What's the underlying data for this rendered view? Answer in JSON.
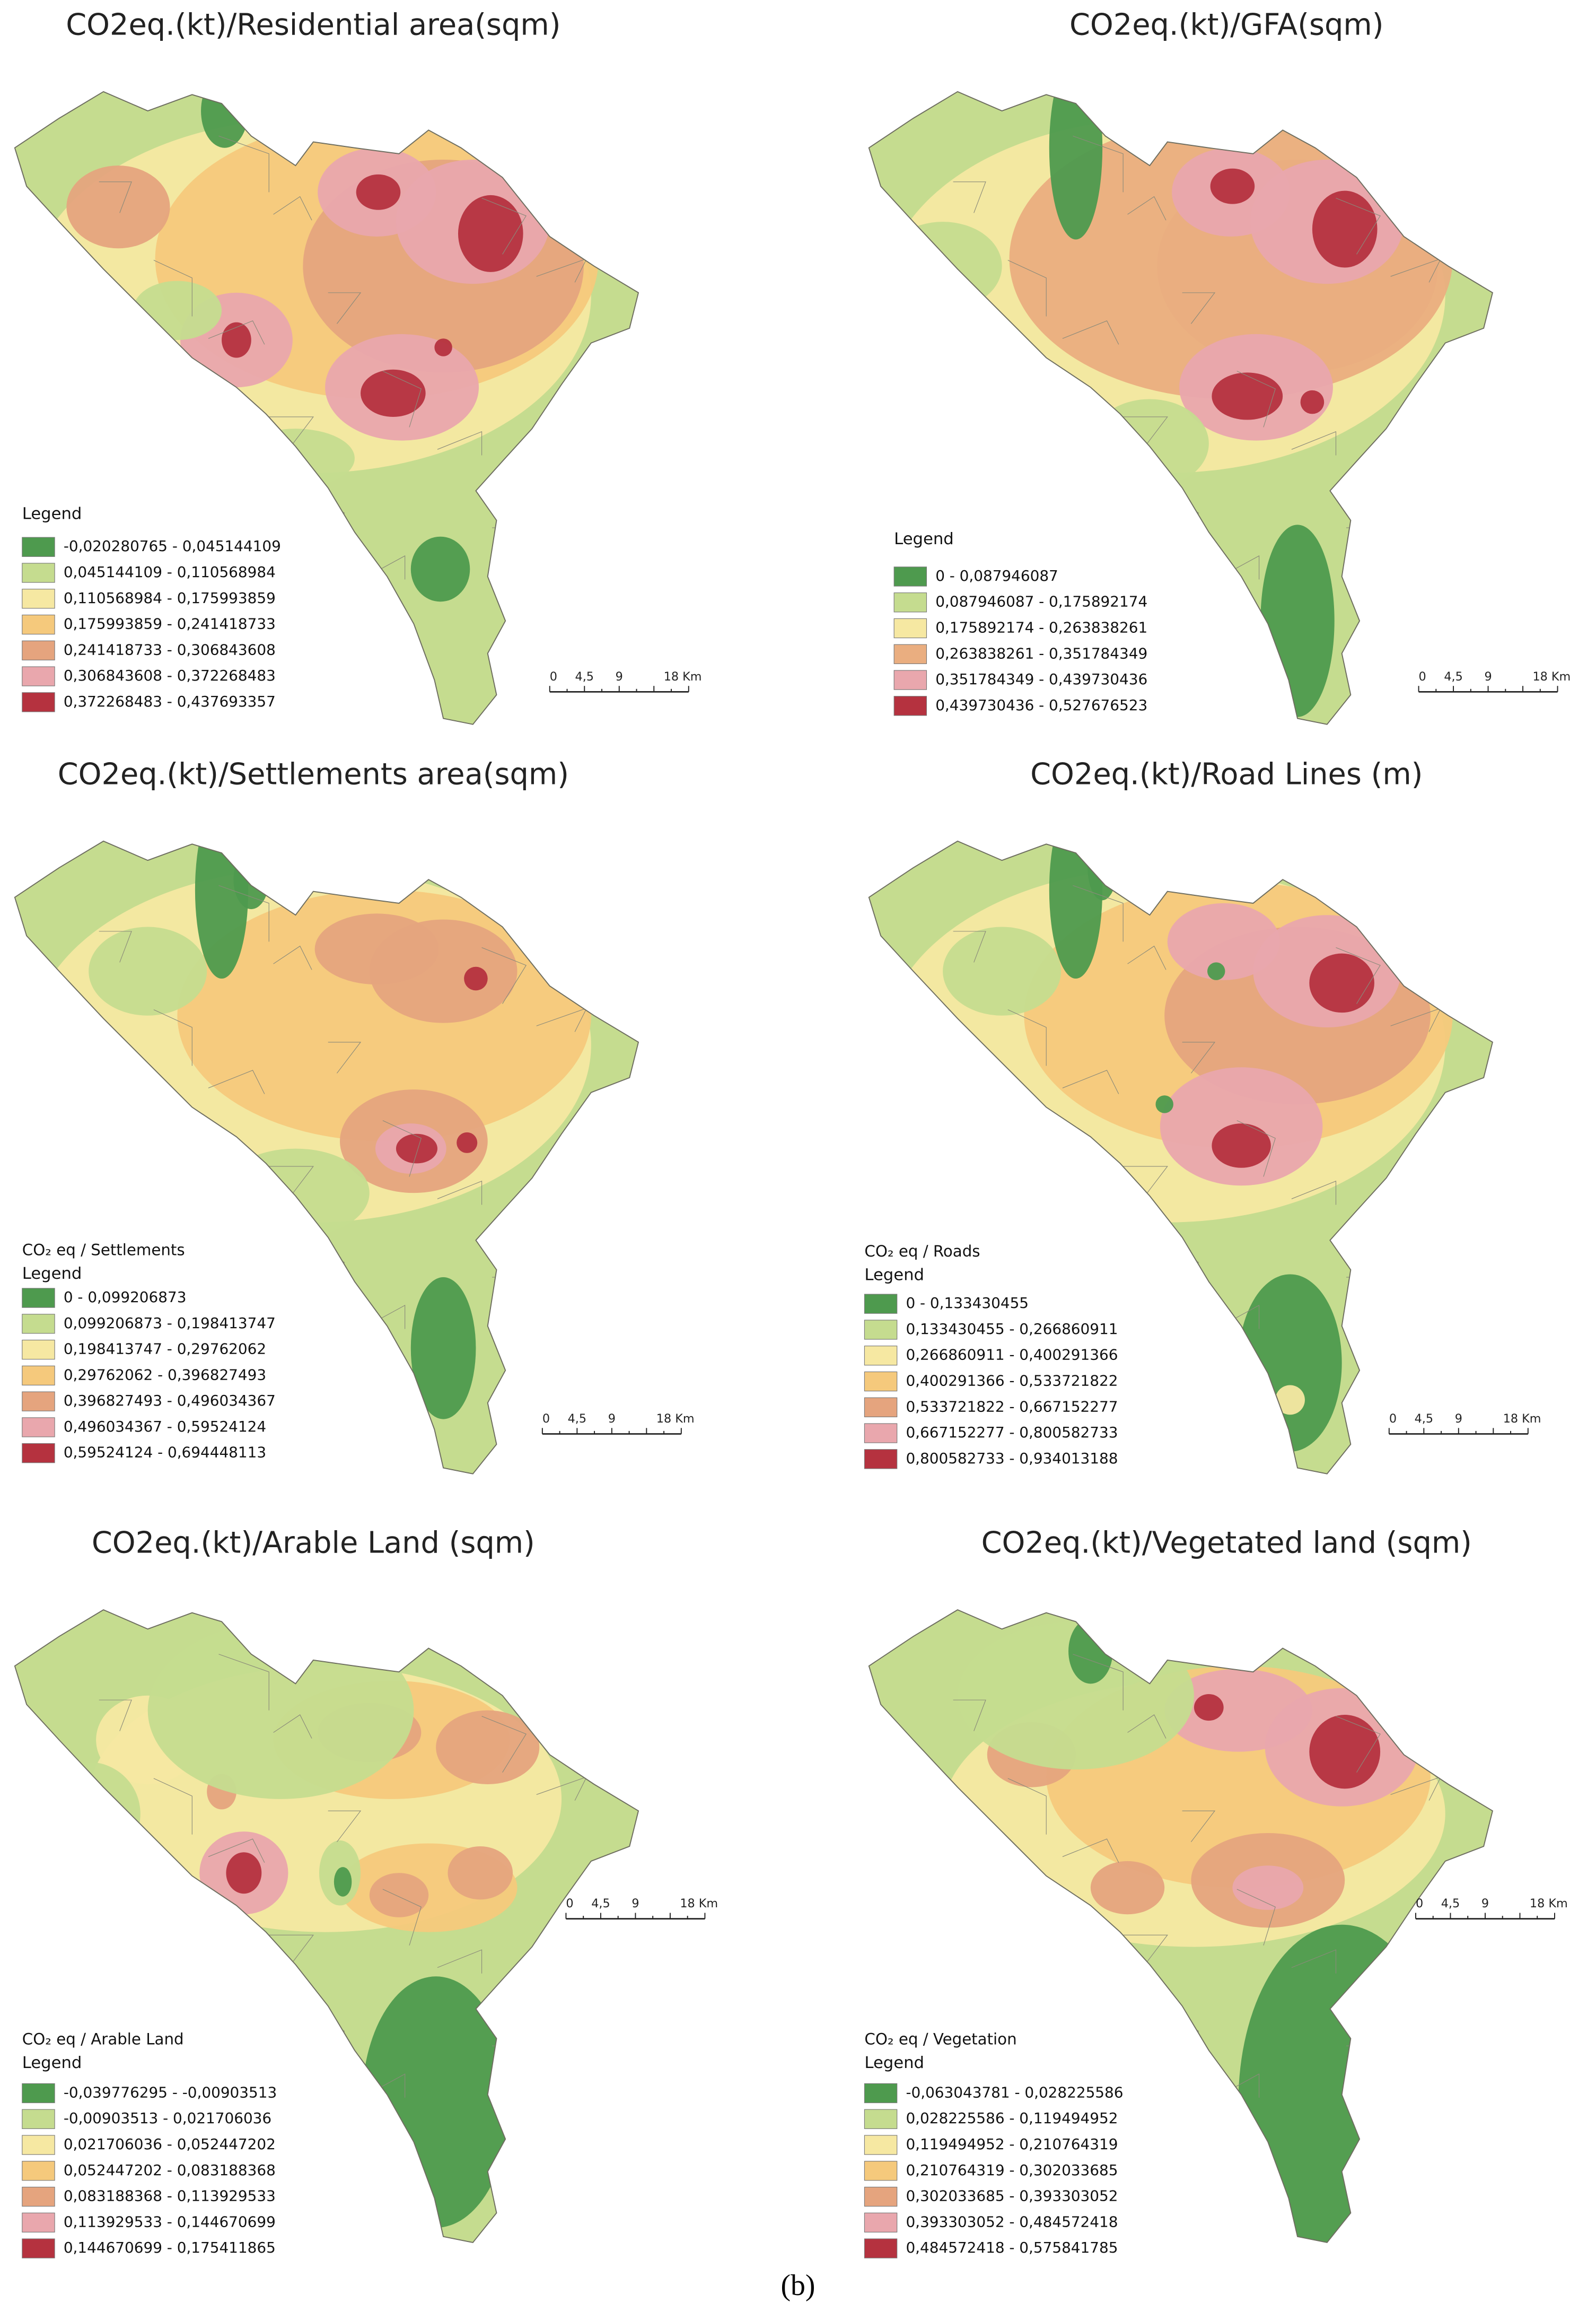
{
  "panels": [
    {
      "title": "CO2eq.(kt)/Residential area(sqm)",
      "legend_title": "Legend",
      "classes": [
        "-0,020280765 - 0,045144109",
        "0,045144109 - 0,110568984",
        "0,110568984 - 0,175993859",
        "0,175993859 - 0,241418733",
        "0,241418733 - 0,306843608",
        "0,306843608 - 0,372268483",
        "0,372268483 - 0,437693357"
      ],
      "colors": [
        "#4e9a4e",
        "#c5dc8f",
        "#f6e8a2",
        "#f5c97c",
        "#e5a47e",
        "#e9a7ad",
        "#b5323f"
      ],
      "scale_labels": [
        "0",
        "4,5",
        "9",
        "18 Km"
      ]
    },
    {
      "title": "CO2eq.(kt)/GFA(sqm)",
      "legend_title": "Legend",
      "classes": [
        "0 - 0,087946087",
        "0,087946087 - 0,175892174",
        "0,175892174 - 0,263838261",
        "0,263838261 - 0,351784349",
        "0,351784349 - 0,439730436",
        "0,439730436 - 0,527676523"
      ],
      "colors": [
        "#4e9a4e",
        "#c5dc8f",
        "#f6e8a2",
        "#eaae80",
        "#e9a7ad",
        "#b5323f"
      ],
      "scale_labels": [
        "0",
        "4,5",
        "9",
        "18 Km"
      ]
    },
    {
      "title": "CO2eq.(kt)/Settlements area(sqm)",
      "subtitle": "CO₂ eq / Settlements",
      "legend_title": "Legend",
      "classes": [
        "0 - 0,099206873",
        "0,099206873 - 0,198413747",
        "0,198413747 - 0,29762062",
        "0,29762062 - 0,396827493",
        "0,396827493 - 0,496034367",
        "0,496034367 - 0,59524124",
        "0,59524124 - 0,694448113"
      ],
      "colors": [
        "#4e9a4e",
        "#c5dc8f",
        "#f6e8a2",
        "#f5c97c",
        "#e5a47e",
        "#e9a7ad",
        "#b5323f"
      ],
      "scale_labels": [
        "0",
        "4,5",
        "9",
        "18 Km"
      ]
    },
    {
      "title": "CO2eq.(kt)/Road Lines (m)",
      "subtitle": "CO₂ eq / Roads",
      "legend_title": "Legend",
      "classes": [
        "0 - 0,133430455",
        "0,133430455 - 0,266860911",
        "0,266860911 - 0,400291366",
        "0,400291366 - 0,533721822",
        "0,533721822 - 0,667152277",
        "0,667152277 - 0,800582733",
        "0,800582733 - 0,934013188"
      ],
      "colors": [
        "#4e9a4e",
        "#c5dc8f",
        "#f6e8a2",
        "#f5c97c",
        "#e5a47e",
        "#e9a7ad",
        "#b5323f"
      ],
      "scale_labels": [
        "0",
        "4,5",
        "9",
        "18 Km"
      ]
    },
    {
      "title": "CO2eq.(kt)/Arable Land (sqm)",
      "subtitle": "CO₂ eq / Arable Land",
      "legend_title": "Legend",
      "classes": [
        "-0,039776295 - -0,00903513",
        "-0,00903513 - 0,021706036",
        "0,021706036 - 0,052447202",
        "0,052447202 - 0,083188368",
        "0,083188368 - 0,113929533",
        "0,113929533 - 0,144670699",
        "0,144670699 - 0,175411865"
      ],
      "colors": [
        "#4e9a4e",
        "#c5dc8f",
        "#f6e8a2",
        "#f5c97c",
        "#e5a47e",
        "#e9a7ad",
        "#b5323f"
      ],
      "scale_labels": [
        "0",
        "4,5",
        "9",
        "18 Km"
      ]
    },
    {
      "title": "CO2eq.(kt)/Vegetated land (sqm)",
      "subtitle": "CO₂ eq / Vegetation",
      "legend_title": "Legend",
      "classes": [
        "-0,063043781 - 0,028225586",
        "0,028225586 - 0,119494952",
        "0,119494952 - 0,210764319",
        "0,210764319 - 0,302033685",
        "0,302033685 - 0,393303052",
        "0,393303052 - 0,484572418",
        "0,484572418 - 0,575841785"
      ],
      "colors": [
        "#4e9a4e",
        "#c5dc8f",
        "#f6e8a2",
        "#f5c97c",
        "#e5a47e",
        "#e9a7ad",
        "#b5323f"
      ],
      "scale_labels": [
        "0",
        "4,5",
        "9",
        "18 Km"
      ]
    }
  ],
  "caption": "(b)"
}
